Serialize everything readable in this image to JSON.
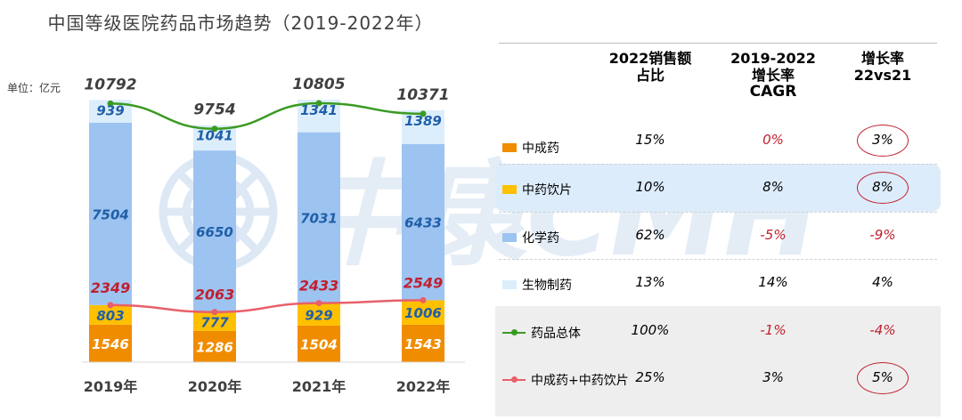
{
  "title": "中国等级医院药品市场趋势（2019-2022年）",
  "unit_label": "单位：亿元",
  "watermark": "中康CMH",
  "colors": {
    "tcm_patent": "#f08c00",
    "tcm_pieces": "#ffc000",
    "chemical": "#9dc3f1",
    "biologic": "#dceefb",
    "total_line": "#3a9b22",
    "tcm_total_line": "#e8606a",
    "seg_text_blue": "#1f5fa8",
    "seg_text_white": "#ffffff",
    "red_text": "#c0202f",
    "highlight_band": "#dcecfb",
    "grey_band": "#eeeeee"
  },
  "chart_data": {
    "type": "bar",
    "stacked": true,
    "categories": [
      "2019年",
      "2020年",
      "2021年",
      "2022年"
    ],
    "series": [
      {
        "name": "中成药",
        "values": [
          1546,
          1286,
          1504,
          1543
        ]
      },
      {
        "name": "中药饮片",
        "values": [
          803,
          777,
          929,
          1006
        ]
      },
      {
        "name": "化学药",
        "values": [
          7504,
          6650,
          7031,
          6433
        ]
      },
      {
        "name": "生物制药",
        "values": [
          939,
          1041,
          1341,
          1389
        ]
      }
    ],
    "lines": [
      {
        "name": "药品总体",
        "values": [
          10792,
          9754,
          10805,
          10371
        ]
      },
      {
        "name": "中成药+中药饮片",
        "values": [
          2349,
          2063,
          2433,
          2549
        ]
      }
    ],
    "ylim": [
      0,
      12000
    ],
    "grid": false
  },
  "table": {
    "headers": [
      [
        "2022销售额",
        "占比"
      ],
      [
        "2019-2022",
        "增长率",
        "CAGR"
      ],
      [
        "增长率",
        "22vs21"
      ]
    ],
    "rows": [
      {
        "legend": "中成药",
        "share": "15%",
        "cagr": "0%",
        "growth": "3%",
        "circled": true
      },
      {
        "legend": "中药饮片",
        "share": "10%",
        "cagr": "8%",
        "growth": "8%",
        "circled": true
      },
      {
        "legend": "化学药",
        "share": "62%",
        "cagr": "-5%",
        "growth": "-9%",
        "circled": false
      },
      {
        "legend": "生物制药",
        "share": "13%",
        "cagr": "14%",
        "growth": "4%",
        "circled": false
      },
      {
        "legend": "药品总体",
        "share": "100%",
        "cagr": "-1%",
        "growth": "-4%",
        "circled": false
      },
      {
        "legend": "中成药+中药饮片",
        "share": "25%",
        "cagr": "3%",
        "growth": "5%",
        "circled": true
      }
    ]
  }
}
